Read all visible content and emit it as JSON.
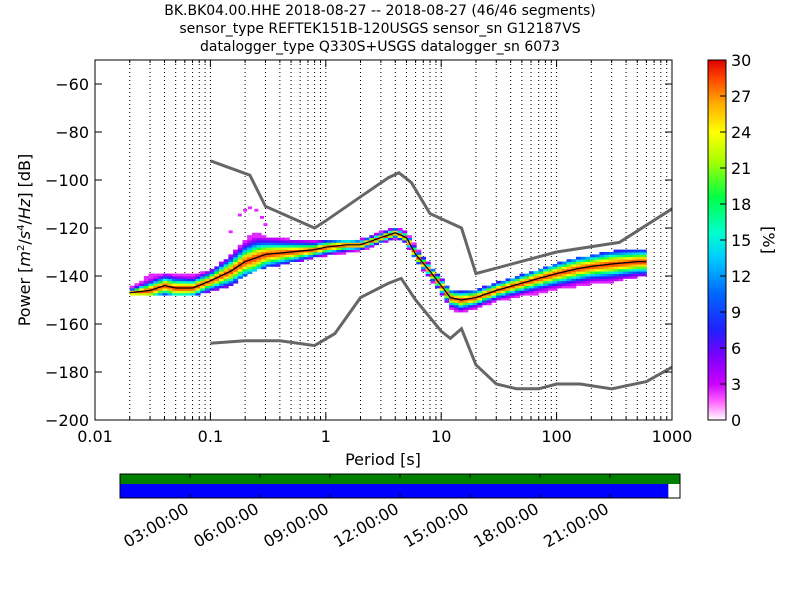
{
  "title": {
    "line1": "BK.BK04.00.HHE   2018-08-27 -- 2018-08-27  (46/46 segments)",
    "line2": "sensor_type REFTEK151B-120USGS sensor_sn G12187VS",
    "line3": "datalogger_type Q330S+USGS datalogger_sn 6073"
  },
  "chart_data": [
    {
      "type": "heatmap",
      "name": "probabilistic-power-spectral-density",
      "xlabel": "Period [s]",
      "ylabel": "Power [m²/s⁴/Hz] [dB]",
      "x_scale": "log",
      "xlim": [
        0.01,
        1000
      ],
      "ylim": [
        -200,
        -50
      ],
      "x_ticks": [
        0.01,
        0.1,
        1,
        10,
        100,
        1000
      ],
      "x_tick_labels": [
        "0.01",
        "0.1",
        "1",
        "10",
        "100",
        "1000"
      ],
      "y_ticks": [
        -200,
        -180,
        -160,
        -140,
        -120,
        -100,
        -80,
        -60
      ],
      "y_tick_labels": [
        "−200",
        "−180",
        "−160",
        "−140",
        "−120",
        "−100",
        "−80",
        "−60"
      ],
      "grid": "dotted vertical",
      "colorbar": {
        "label": "[%]",
        "range": [
          0,
          30
        ],
        "ticks": [
          0,
          3,
          6,
          9,
          12,
          15,
          18,
          21,
          24,
          27,
          30
        ]
      },
      "mode_curve": {
        "period": [
          0.02,
          0.03,
          0.04,
          0.05,
          0.07,
          0.1,
          0.15,
          0.2,
          0.3,
          0.5,
          0.8,
          1,
          1.5,
          2,
          3,
          4,
          5,
          6,
          8,
          10,
          12,
          15,
          20,
          30,
          50,
          70,
          100,
          150,
          200,
          300,
          500,
          600
        ],
        "power": [
          -147,
          -146,
          -144,
          -145,
          -145,
          -142,
          -138,
          -134,
          -131,
          -130,
          -129,
          -128,
          -127,
          -127,
          -124,
          -122,
          -124,
          -131,
          -138,
          -144,
          -149,
          -150,
          -149,
          -146,
          -143,
          -141,
          -139,
          -137,
          -136,
          -135,
          -134,
          -134
        ]
      },
      "spread": {
        "period": [
          0.02,
          0.03,
          0.05,
          0.07,
          0.1,
          0.15,
          0.2,
          0.25,
          0.3,
          0.5,
          0.8,
          1,
          1.5,
          2,
          3,
          4,
          5,
          6,
          8,
          10,
          12,
          15,
          20,
          30,
          50,
          70,
          100,
          150,
          200,
          300,
          500,
          600
        ],
        "low": [
          -148,
          -148,
          -148,
          -148,
          -146,
          -144,
          -139,
          -137,
          -136,
          -134,
          -132,
          -131,
          -130,
          -129,
          -126,
          -124,
          -126,
          -133,
          -141,
          -147,
          -153,
          -155,
          -153,
          -150,
          -148,
          -147,
          -145,
          -144,
          -143,
          -142,
          -140,
          -140
        ],
        "high": [
          -145,
          -140,
          -139,
          -140,
          -138,
          -132,
          -125,
          -122,
          -124,
          -125,
          -126,
          -125,
          -125,
          -125,
          -122,
          -120,
          -122,
          -128,
          -136,
          -141,
          -146,
          -147,
          -146,
          -143,
          -140,
          -138,
          -135,
          -133,
          -132,
          -130,
          -129,
          -129
        ]
      },
      "outliers": {
        "period": [
          0.15,
          0.18,
          0.2,
          0.22,
          0.25,
          0.28,
          0.3
        ],
        "power": [
          -122,
          -115,
          -113,
          -112,
          -113,
          -116,
          -119
        ]
      },
      "reference_curves": [
        {
          "period": [
            0.1,
            0.22,
            0.3,
            0.8,
            1,
            2,
            3.5,
            4.3,
            5.5,
            8,
            15,
            20,
            100,
            350,
            1000
          ],
          "power": [
            -92,
            -98,
            -111,
            -120,
            -117,
            -107,
            -99,
            -97,
            -101,
            -114,
            -120,
            -139,
            -130,
            -126,
            -112
          ]
        },
        {
          "period": [
            0.1,
            0.2,
            0.4,
            0.8,
            1.2,
            2,
            3.5,
            4.5,
            6,
            10,
            12,
            15,
            20,
            30,
            45,
            70,
            100,
            160,
            300,
            600,
            1000
          ],
          "power": [
            -168,
            -167,
            -167,
            -169,
            -164,
            -149,
            -143,
            -141,
            -150,
            -163,
            -166,
            -162,
            -177,
            -185,
            -187,
            -187,
            -185,
            -185,
            -187,
            -184,
            -178
          ]
        }
      ]
    },
    {
      "type": "timeline",
      "name": "data-coverage",
      "tick_labels": [
        "03:00:00",
        "06:00:00",
        "09:00:00",
        "12:00:00",
        "15:00:00",
        "18:00:00",
        "21:00:00"
      ],
      "tick_hours": [
        3,
        6,
        9,
        12,
        15,
        18,
        21
      ],
      "range_hours": [
        0,
        24
      ],
      "available": [
        0,
        24
      ],
      "used": [
        0,
        23.5
      ],
      "available_color": "#008000",
      "used_color": "#0000ff"
    }
  ],
  "colors": {
    "reference_curve": "#666666",
    "mode_curve": "#000000",
    "grid": "#000000"
  }
}
